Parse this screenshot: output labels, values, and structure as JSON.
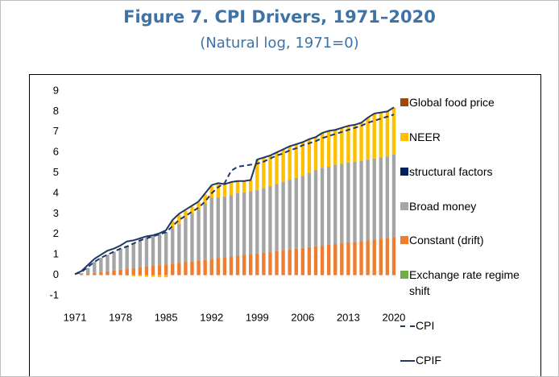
{
  "chart_data": {
    "type": "bar",
    "title": "Figure 7. CPI Drivers, 1971–2020",
    "subtitle": "(Natural log, 1971=0)",
    "categories": [
      "1971",
      null,
      null,
      null,
      null,
      null,
      null,
      "1978",
      null,
      null,
      null,
      null,
      null,
      null,
      "1985",
      null,
      null,
      null,
      null,
      null,
      null,
      "1992",
      null,
      null,
      null,
      null,
      null,
      null,
      "1999",
      null,
      null,
      null,
      null,
      null,
      null,
      "2006",
      null,
      null,
      null,
      null,
      null,
      null,
      "2013",
      null,
      null,
      null,
      null,
      null,
      null,
      "2020"
    ],
    "ylim": [
      -1,
      9
    ],
    "yticks": [
      -1,
      0,
      1,
      2,
      3,
      4,
      5,
      6,
      7,
      8,
      9
    ],
    "grid": false,
    "legend": "right",
    "series": [
      {
        "name": "Global food price",
        "color": "#9e480e",
        "kind": "bar",
        "values": [
          0,
          0,
          0,
          0,
          0,
          0,
          0,
          0,
          0,
          0,
          0,
          0,
          0,
          0,
          0,
          0,
          0,
          0,
          0,
          0,
          0,
          0,
          0,
          0,
          0,
          0,
          0,
          0,
          0,
          0,
          0,
          0,
          0,
          0,
          0,
          0,
          0,
          0,
          0,
          0,
          0,
          0,
          0,
          0,
          0,
          0,
          0,
          0,
          0,
          0
        ]
      },
      {
        "name": "NEER",
        "color": "#ffc000",
        "kind": "bar",
        "values": [
          0,
          0,
          0,
          0,
          0,
          0,
          0,
          0,
          -0.02,
          -0.05,
          -0.05,
          -0.08,
          -0.08,
          -0.1,
          -0.1,
          0.35,
          0.45,
          0.35,
          0.35,
          0.35,
          0.45,
          0.55,
          0.65,
          0.6,
          0.65,
          0.6,
          0.55,
          0.55,
          1.5,
          1.5,
          1.5,
          1.55,
          1.6,
          1.65,
          1.65,
          1.65,
          1.65,
          1.6,
          1.7,
          1.75,
          1.7,
          1.75,
          1.8,
          1.8,
          1.85,
          2.05,
          2.2,
          2.2,
          2.2,
          2.3
        ]
      },
      {
        "name": "structural factors",
        "color": "#002060",
        "kind": "bar",
        "values": [
          0,
          0,
          0,
          0,
          0,
          0,
          0,
          0,
          0,
          0,
          0,
          0,
          0,
          0,
          0,
          0,
          0,
          0,
          0,
          0,
          0,
          0,
          0,
          0,
          0,
          0,
          0,
          0,
          0,
          0,
          0,
          0,
          0,
          0,
          0,
          0,
          0,
          0,
          0,
          0,
          0,
          0,
          0,
          0,
          0,
          0,
          0,
          0,
          0,
          0
        ]
      },
      {
        "name": "Broad money",
        "color": "#a5a5a5",
        "kind": "bar",
        "values": [
          0,
          0.06,
          0.27,
          0.54,
          0.7,
          0.81,
          0.92,
          1.03,
          1.15,
          1.21,
          1.32,
          1.38,
          1.44,
          1.51,
          1.57,
          1.73,
          1.89,
          2.15,
          2.32,
          2.48,
          2.74,
          3.0,
          2.96,
          2.98,
          2.99,
          3.05,
          3.06,
          3.07,
          3.09,
          3.15,
          3.21,
          3.27,
          3.33,
          3.4,
          3.46,
          3.52,
          3.63,
          3.74,
          3.81,
          3.82,
          3.88,
          3.89,
          3.9,
          3.92,
          3.93,
          3.94,
          3.95,
          3.96,
          3.98,
          4.04
        ]
      },
      {
        "name": "Constant (drift)",
        "color": "#ed7d31",
        "kind": "bar",
        "values": [
          0,
          0.04,
          0.08,
          0.11,
          0.15,
          0.19,
          0.23,
          0.27,
          0.3,
          0.34,
          0.38,
          0.42,
          0.46,
          0.49,
          0.53,
          0.57,
          0.61,
          0.65,
          0.68,
          0.72,
          0.76,
          0.8,
          0.84,
          0.87,
          0.91,
          0.95,
          0.99,
          1.03,
          1.06,
          1.1,
          1.14,
          1.18,
          1.22,
          1.25,
          1.29,
          1.33,
          1.37,
          1.41,
          1.44,
          1.48,
          1.52,
          1.56,
          1.6,
          1.63,
          1.67,
          1.71,
          1.75,
          1.79,
          1.82,
          1.86
        ]
      },
      {
        "name": "Exchange rate regime shift",
        "color": "#70ad47",
        "kind": "bar",
        "values": [
          0,
          0,
          0,
          0,
          0,
          0,
          0,
          0,
          0,
          0,
          0,
          0,
          0,
          0,
          0,
          0,
          0,
          0,
          0,
          0,
          0,
          0,
          0,
          0,
          0,
          0,
          0,
          0,
          0,
          0,
          0,
          0,
          0,
          0,
          0,
          0,
          0,
          0,
          0,
          0,
          0,
          0,
          0,
          0,
          0,
          0,
          0,
          0,
          0,
          0
        ]
      },
      {
        "name": "CPI",
        "color": "#1f3864",
        "kind": "line",
        "dash": true,
        "values": [
          0.05,
          0.15,
          0.4,
          0.65,
          0.85,
          1.0,
          1.15,
          1.3,
          1.4,
          1.55,
          1.7,
          1.8,
          1.9,
          2.0,
          2.1,
          2.4,
          2.7,
          2.9,
          3.1,
          3.3,
          3.6,
          4.0,
          4.3,
          4.5,
          5.1,
          5.3,
          5.35,
          5.4,
          5.45,
          5.55,
          5.7,
          5.85,
          5.95,
          6.1,
          6.2,
          6.35,
          6.45,
          6.55,
          6.7,
          6.8,
          6.9,
          7.0,
          7.1,
          7.2,
          7.3,
          7.45,
          7.55,
          7.65,
          7.75,
          7.85
        ]
      },
      {
        "name": "CPIF",
        "color": "#1f3864",
        "kind": "line",
        "dash": false,
        "values": [
          0.05,
          0.2,
          0.5,
          0.8,
          1.0,
          1.2,
          1.3,
          1.45,
          1.65,
          1.7,
          1.8,
          1.9,
          1.95,
          2.05,
          2.2,
          2.7,
          3.0,
          3.2,
          3.4,
          3.6,
          4.0,
          4.4,
          4.5,
          4.45,
          4.55,
          4.6,
          4.6,
          4.65,
          5.65,
          5.75,
          5.85,
          6.0,
          6.15,
          6.3,
          6.4,
          6.5,
          6.65,
          6.75,
          6.95,
          7.05,
          7.1,
          7.2,
          7.3,
          7.35,
          7.45,
          7.7,
          7.9,
          7.95,
          8.0,
          8.2
        ]
      }
    ]
  }
}
